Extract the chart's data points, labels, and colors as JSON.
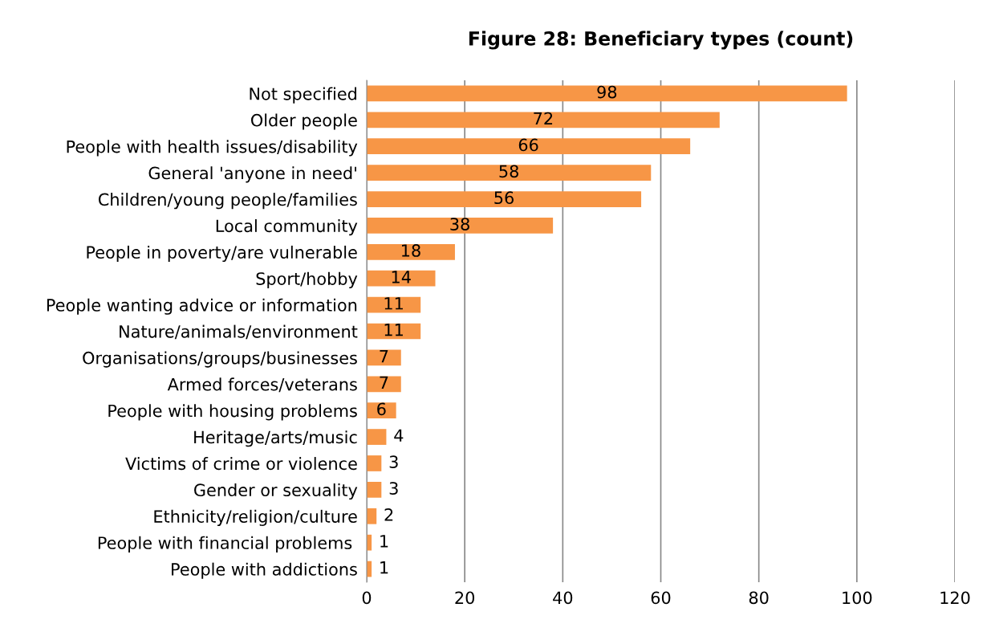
{
  "chart_data": {
    "type": "bar",
    "orientation": "horizontal",
    "title": "Figure 28: Beneficiary types (count)",
    "categories": [
      "Not specified",
      "Older people",
      "People with health issues/disability",
      "General 'anyone in need'",
      "Children/young people/families",
      "Local community",
      "People in poverty/are vulnerable",
      "Sport/hobby",
      "People wanting advice or information",
      "Nature/animals/environment",
      "Organisations/groups/businesses",
      "Armed forces/veterans",
      "People with housing problems",
      "Heritage/arts/music",
      "Victims of crime or violence",
      "Gender or sexuality",
      "Ethnicity/religion/culture",
      "People with financial problems ",
      "People with addictions"
    ],
    "values": [
      98,
      72,
      66,
      58,
      56,
      38,
      18,
      14,
      11,
      11,
      7,
      7,
      6,
      4,
      3,
      3,
      2,
      1,
      1
    ],
    "color": "#f79646",
    "xlim": [
      0,
      120
    ],
    "xticks": [
      0,
      20,
      40,
      60,
      80,
      100,
      120
    ],
    "grid": "x",
    "data_labels": true
  }
}
